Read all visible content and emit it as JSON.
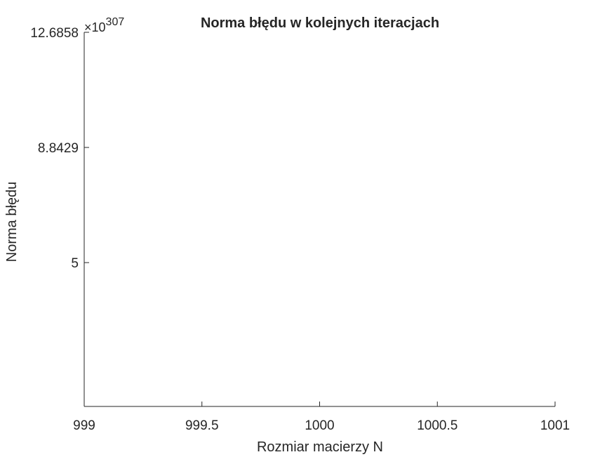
{
  "chart_data": {
    "type": "line",
    "title": "Norma błędu w kolejnych iteracjach",
    "xlabel": "Rozmiar macierzy N",
    "ylabel": "Norma błędu",
    "exponent_label": {
      "base": "×10",
      "power": "307"
    },
    "xlim": [
      999,
      1001
    ],
    "ylim": [
      0.2,
      12.6858
    ],
    "x_ticks": [
      {
        "value": 999,
        "label": "999"
      },
      {
        "value": 999.5,
        "label": "999.5"
      },
      {
        "value": 1000,
        "label": "1000"
      },
      {
        "value": 1000.5,
        "label": "1000.5"
      },
      {
        "value": 1001,
        "label": "1001"
      }
    ],
    "y_ticks": [
      {
        "value": 5,
        "label": "5"
      },
      {
        "value": 8.8429,
        "label": "8.8429"
      },
      {
        "value": 12.6858,
        "label": "12.6858"
      }
    ],
    "grid": false,
    "series": []
  },
  "colors": {
    "axis": "#262626",
    "background": "#ffffff"
  }
}
